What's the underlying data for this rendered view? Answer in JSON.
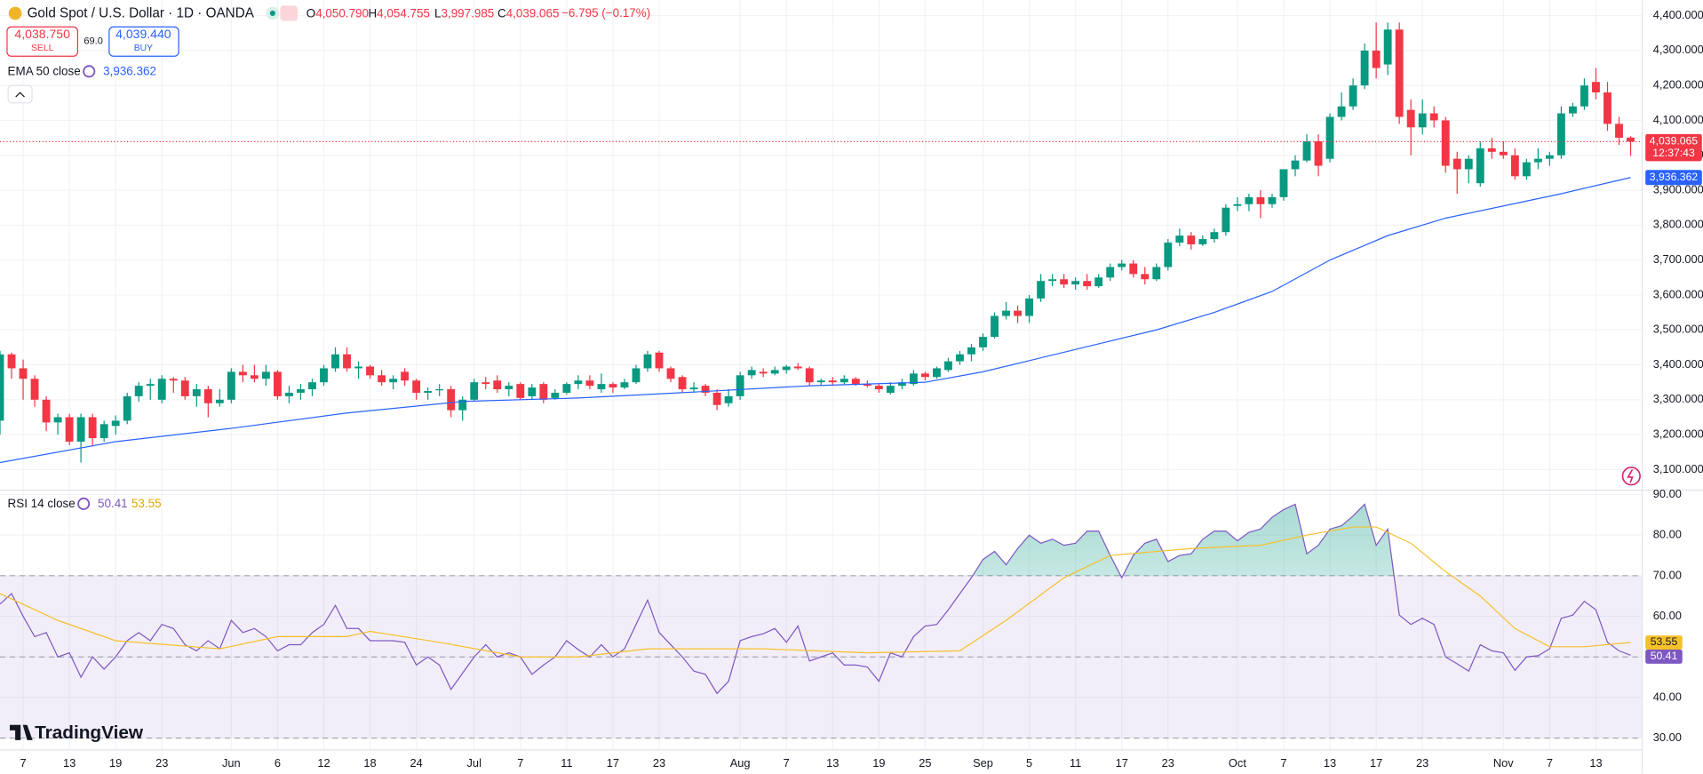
{
  "branding": "TradingView",
  "chart_data": [
    {
      "type": "candlestick",
      "title": "Gold Spot / U.S. Dollar · 1D · OANDA",
      "ohlc_legend": [
        {
          "key": "O",
          "label": "4,050.790"
        },
        {
          "key": "H",
          "label": "4,054.755"
        },
        {
          "key": "L",
          "label": "3,997.985"
        },
        {
          "key": "C",
          "label": "4,039.065"
        }
      ],
      "change": "−6.795 (−0.17%)",
      "sell": {
        "price": "4,038.750",
        "label": "SELL"
      },
      "spread": "69.0",
      "buy": {
        "price": "4,039.440",
        "label": "BUY"
      },
      "up_color": "#089981",
      "down_color": "#f23645",
      "open": [
        3240,
        3430,
        3390,
        3360,
        3300,
        3235,
        3250,
        3180,
        3250,
        3190,
        3225,
        3240,
        3310,
        3340,
        3300,
        3360,
        3355,
        3310,
        3330,
        3290,
        3300,
        3380,
        3370,
        3360,
        3380,
        3310,
        3320,
        3330,
        3350,
        3390,
        3430,
        3390,
        3395,
        3370,
        3350,
        3380,
        3355,
        3320,
        3330,
        3330,
        3270,
        3300,
        3350,
        3355,
        3330,
        3345,
        3310,
        3345,
        3305,
        3320,
        3345,
        3355,
        3330,
        3345,
        3335,
        3350,
        3390,
        3435,
        3390,
        3365,
        3330,
        3340,
        3320,
        3290,
        3310,
        3370,
        3380,
        3375,
        3385,
        3395,
        3390,
        3350,
        3355,
        3350,
        3360,
        3345,
        3340,
        3320,
        3340,
        3345,
        3375,
        3365,
        3385,
        3410,
        3430,
        3450,
        3480,
        3540,
        3555,
        3540,
        3590,
        3640,
        3645,
        3630,
        3640,
        3625,
        3650,
        3680,
        3690,
        3660,
        3645,
        3680,
        3750,
        3770,
        3745,
        3760,
        3780,
        3855,
        3860,
        3880,
        3860,
        3880,
        3960,
        3985,
        4040,
        3990,
        4110,
        4140,
        4200,
        4300,
        4260,
        4360,
        4130,
        4080,
        4120,
        4100,
        3990,
        3960,
        3920,
        4020,
        4010,
        4000,
        3940,
        3980,
        3990,
        4000,
        4120,
        4140,
        4210,
        4180,
        4090,
        4050.79
      ],
      "high": [
        3440,
        3435,
        3415,
        3370,
        3310,
        3260,
        3260,
        3260,
        3260,
        3240,
        3255,
        3320,
        3350,
        3360,
        3370,
        3365,
        3365,
        3345,
        3340,
        3330,
        3390,
        3400,
        3400,
        3400,
        3385,
        3340,
        3345,
        3360,
        3400,
        3450,
        3450,
        3410,
        3400,
        3385,
        3370,
        3390,
        3360,
        3335,
        3345,
        3340,
        3310,
        3360,
        3365,
        3370,
        3350,
        3350,
        3345,
        3350,
        3330,
        3350,
        3370,
        3370,
        3375,
        3350,
        3360,
        3400,
        3440,
        3440,
        3395,
        3370,
        3350,
        3345,
        3330,
        3330,
        3380,
        3395,
        3390,
        3395,
        3400,
        3405,
        3395,
        3360,
        3365,
        3370,
        3365,
        3355,
        3345,
        3350,
        3360,
        3385,
        3380,
        3395,
        3420,
        3440,
        3460,
        3490,
        3550,
        3580,
        3570,
        3600,
        3660,
        3660,
        3660,
        3650,
        3660,
        3660,
        3690,
        3700,
        3700,
        3680,
        3690,
        3760,
        3790,
        3780,
        3770,
        3790,
        3860,
        3880,
        3890,
        3900,
        3890,
        3960,
        4000,
        4060,
        4060,
        4120,
        4180,
        4220,
        4320,
        4380,
        4380,
        4380,
        4160,
        4160,
        4140,
        4110,
        4010,
        4000,
        4040,
        4050,
        4040,
        4020,
        3990,
        4020,
        4010,
        4140,
        4150,
        4220,
        4250,
        4210,
        4110,
        4054.755
      ],
      "low": [
        3200,
        3360,
        3300,
        3280,
        3210,
        3200,
        3170,
        3120,
        3170,
        3180,
        3200,
        3230,
        3295,
        3300,
        3290,
        3320,
        3300,
        3280,
        3250,
        3280,
        3290,
        3350,
        3350,
        3340,
        3300,
        3290,
        3300,
        3310,
        3340,
        3380,
        3380,
        3360,
        3360,
        3340,
        3330,
        3340,
        3300,
        3300,
        3310,
        3250,
        3240,
        3295,
        3330,
        3320,
        3310,
        3300,
        3300,
        3290,
        3300,
        3315,
        3330,
        3330,
        3320,
        3320,
        3330,
        3345,
        3380,
        3380,
        3350,
        3320,
        3320,
        3310,
        3270,
        3280,
        3300,
        3360,
        3365,
        3370,
        3375,
        3385,
        3340,
        3340,
        3340,
        3345,
        3340,
        3335,
        3320,
        3315,
        3330,
        3340,
        3355,
        3360,
        3380,
        3400,
        3410,
        3440,
        3475,
        3530,
        3520,
        3520,
        3580,
        3625,
        3620,
        3615,
        3615,
        3620,
        3640,
        3670,
        3650,
        3630,
        3640,
        3670,
        3740,
        3730,
        3740,
        3750,
        3770,
        3840,
        3840,
        3820,
        3850,
        3870,
        3940,
        3980,
        3940,
        3980,
        4100,
        4130,
        4190,
        4220,
        4230,
        4090,
        4000,
        4060,
        4080,
        3950,
        3890,
        3920,
        3910,
        3990,
        3990,
        3930,
        3930,
        3960,
        3970,
        3990,
        4110,
        4130,
        4160,
        4070,
        4030,
        3997.985
      ],
      "close": [
        3430,
        3390,
        3360,
        3300,
        3235,
        3250,
        3180,
        3250,
        3190,
        3230,
        3240,
        3310,
        3340,
        3345,
        3360,
        3355,
        3310,
        3330,
        3290,
        3300,
        3380,
        3370,
        3360,
        3380,
        3310,
        3320,
        3330,
        3350,
        3390,
        3430,
        3390,
        3395,
        3370,
        3350,
        3360,
        3355,
        3320,
        3325,
        3330,
        3270,
        3300,
        3350,
        3345,
        3330,
        3340,
        3305,
        3335,
        3300,
        3320,
        3345,
        3355,
        3340,
        3345,
        3335,
        3350,
        3390,
        3430,
        3390,
        3360,
        3330,
        3335,
        3320,
        3285,
        3310,
        3370,
        3385,
        3375,
        3385,
        3395,
        3390,
        3350,
        3355,
        3350,
        3360,
        3345,
        3340,
        3330,
        3340,
        3350,
        3375,
        3365,
        3390,
        3410,
        3430,
        3450,
        3480,
        3540,
        3555,
        3540,
        3590,
        3640,
        3645,
        3630,
        3640,
        3625,
        3650,
        3680,
        3690,
        3660,
        3645,
        3680,
        3750,
        3770,
        3745,
        3760,
        3780,
        3850,
        3860,
        3880,
        3860,
        3880,
        3960,
        3985,
        4040,
        3970,
        4110,
        4140,
        4200,
        4300,
        4250,
        4360,
        4110,
        4080,
        4120,
        4100,
        3970,
        3960,
        3990,
        4020,
        4010,
        4000,
        3940,
        3980,
        3990,
        4000,
        4120,
        4140,
        4200,
        4180,
        4090,
        4050,
        4039.065
      ],
      "price_tag": {
        "close_label": "4,039.065",
        "countdown": "12:37:43"
      },
      "overlays": [
        {
          "name": "EMA 50 close",
          "color": "#2962ff",
          "x": [
            0,
            10,
            20,
            30,
            40,
            50,
            60,
            70,
            80,
            85,
            90,
            95,
            100,
            105,
            110,
            115,
            120,
            125,
            130,
            135,
            141
          ],
          "values": [
            3120,
            3180,
            3218,
            3262,
            3295,
            3305,
            3322,
            3340,
            3350,
            3380,
            3420,
            3460,
            3500,
            3550,
            3610,
            3700,
            3770,
            3820,
            3855,
            3890,
            3936.362
          ],
          "value_label": "3,936.362"
        }
      ],
      "xlim": [
        0,
        142
      ],
      "ylim": [
        3044,
        4444
      ],
      "yticks": [
        {
          "value": 4400,
          "label": "4,400.000"
        },
        {
          "value": 4300,
          "label": "4,300.000"
        },
        {
          "value": 4200,
          "label": "4,200.000"
        },
        {
          "value": 4100,
          "label": "4,100.000"
        },
        {
          "value": 4000,
          "label": "4,000.000"
        },
        {
          "value": 3900,
          "label": "3,900.000"
        },
        {
          "value": 3800,
          "label": "3,800.000"
        },
        {
          "value": 3700,
          "label": "3,700.000"
        },
        {
          "value": 3600,
          "label": "3,600.000"
        },
        {
          "value": 3500,
          "label": "3,500.000"
        },
        {
          "value": 3400,
          "label": "3,400.000"
        },
        {
          "value": 3300,
          "label": "3,300.000"
        },
        {
          "value": 3200,
          "label": "3,200.000"
        },
        {
          "value": 3100,
          "label": "3,100.000"
        }
      ],
      "xticks": [
        {
          "value": 2,
          "label": "7"
        },
        {
          "value": 6,
          "label": "13"
        },
        {
          "value": 10,
          "label": "19"
        },
        {
          "value": 14,
          "label": "23"
        },
        {
          "value": 20,
          "label": "Jun"
        },
        {
          "value": 24,
          "label": "6"
        },
        {
          "value": 28,
          "label": "12"
        },
        {
          "value": 32,
          "label": "18"
        },
        {
          "value": 36,
          "label": "24"
        },
        {
          "value": 41,
          "label": "Jul"
        },
        {
          "value": 45,
          "label": "7"
        },
        {
          "value": 49,
          "label": "11"
        },
        {
          "value": 53,
          "label": "17"
        },
        {
          "value": 57,
          "label": "23"
        },
        {
          "value": 64,
          "label": "Aug"
        },
        {
          "value": 68,
          "label": "7"
        },
        {
          "value": 72,
          "label": "13"
        },
        {
          "value": 76,
          "label": "19"
        },
        {
          "value": 80,
          "label": "25"
        },
        {
          "value": 85,
          "label": "Sep"
        },
        {
          "value": 89,
          "label": "5"
        },
        {
          "value": 93,
          "label": "11"
        },
        {
          "value": 97,
          "label": "17"
        },
        {
          "value": 101,
          "label": "23"
        },
        {
          "value": 107,
          "label": "Oct"
        },
        {
          "value": 111,
          "label": "7"
        },
        {
          "value": 115,
          "label": "13"
        },
        {
          "value": 119,
          "label": "17"
        },
        {
          "value": 123,
          "label": "23"
        },
        {
          "value": 130,
          "label": "Nov"
        },
        {
          "value": 134,
          "label": "7"
        },
        {
          "value": 138,
          "label": "13"
        }
      ],
      "grid": true
    },
    {
      "type": "line",
      "title": "RSI 14 close",
      "series": [
        {
          "color": "#7e57c2",
          "values": [
            63,
            65.6,
            60,
            55,
            56,
            50,
            51,
            45,
            50,
            47,
            50,
            54,
            56,
            54,
            58,
            57,
            53,
            51.5,
            54,
            52,
            59,
            56,
            57,
            55,
            51.5,
            53,
            53,
            56,
            58,
            62.7,
            57,
            57,
            54,
            54,
            54,
            53.6,
            48,
            50,
            48,
            42,
            46,
            50,
            53,
            50,
            51,
            50,
            45.7,
            48,
            50,
            54,
            51.8,
            50,
            53,
            50,
            52,
            58,
            64,
            56,
            53,
            50,
            46.5,
            45.7,
            41,
            44,
            54,
            55,
            55.7,
            57,
            53.6,
            57.6,
            49,
            50,
            51,
            48,
            48,
            47.5,
            44,
            51,
            50,
            55,
            57.6,
            58,
            61.6,
            65.6,
            69.5,
            74,
            76,
            72.7,
            76.7,
            80,
            78,
            79,
            77.5,
            78,
            81,
            81,
            75,
            69.5,
            75,
            78,
            79,
            73.5,
            75,
            75.4,
            79,
            81,
            81,
            78.6,
            80.7,
            81.5,
            84.4,
            86.3,
            87.6,
            75.4,
            77.5,
            81.5,
            82.3,
            84.7,
            87.6,
            77.5,
            81.5,
            60.3,
            58,
            59.5,
            58,
            50,
            48.3,
            46.5,
            53,
            51.5,
            51,
            46.7,
            50,
            50.3,
            52,
            59.5,
            60.3,
            63.7,
            61.6,
            53.6,
            51.5,
            50.41
          ]
        },
        {
          "color": "#f5c02b",
          "x": [
            0,
            5,
            10,
            19,
            24,
            30,
            32,
            38,
            45,
            50,
            56,
            66,
            75,
            83,
            87,
            92,
            96,
            103,
            109,
            113,
            117,
            119,
            122,
            125,
            128,
            131,
            134,
            137,
            141
          ],
          "values": [
            65.6,
            59,
            54,
            52,
            55,
            55,
            56.3,
            53.6,
            50,
            50,
            52,
            52,
            51,
            51.5,
            59,
            69.5,
            75,
            76.7,
            77.5,
            80,
            82,
            82,
            78,
            71,
            65,
            57,
            52.5,
            52.5,
            53.55
          ]
        }
      ],
      "levels": [
        30,
        50,
        70
      ],
      "band_color": "#7e57c2",
      "overbought_color": "#089981",
      "ylim": [
        27.1,
        90.8
      ],
      "yticks": [
        {
          "value": 90,
          "label": "90.00"
        },
        {
          "value": 80,
          "label": "80.00"
        },
        {
          "value": 70,
          "label": "70.00"
        },
        {
          "value": 60,
          "label": "60.00"
        },
        {
          "value": 50,
          "label": "50.00"
        },
        {
          "value": 40,
          "label": "40.00"
        },
        {
          "value": 30,
          "label": "30.00"
        }
      ]
    }
  ]
}
